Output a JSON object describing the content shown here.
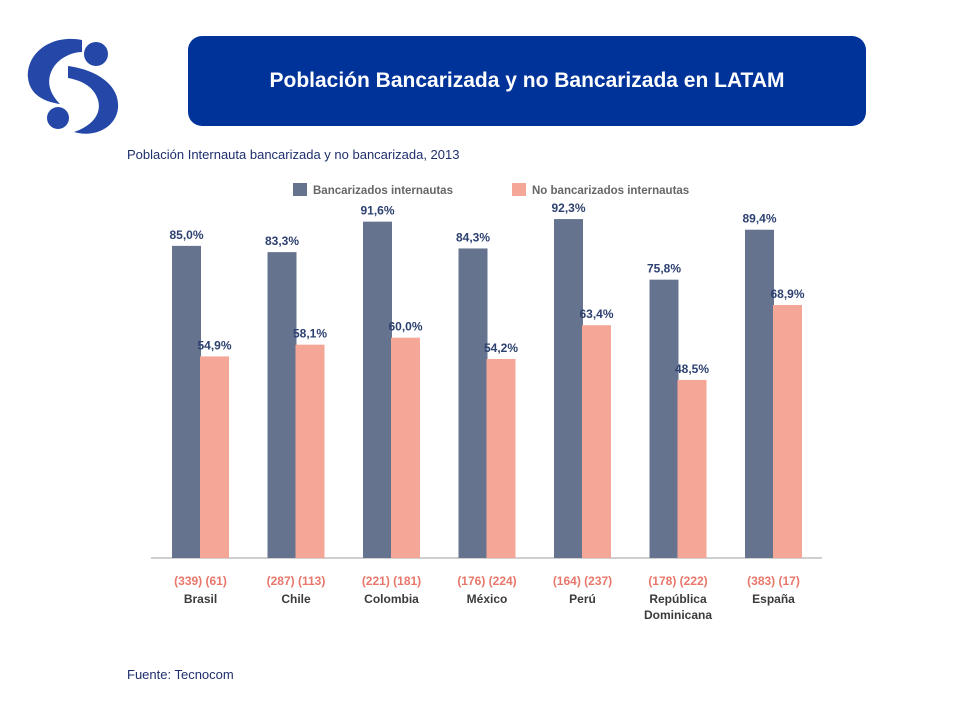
{
  "slide": {
    "title": "Población Bancarizada y no Bancarizada en LATAM",
    "subtitle": "Población Internauta bancarizada y no bancarizada, 2013",
    "source": "Fuente: Tecnocom",
    "logo_icon": "stylized-s-logo-icon",
    "brand_color": "#003399"
  },
  "chart_data": {
    "type": "bar",
    "title": "",
    "xlabel": "",
    "ylabel": "",
    "ylim": [
      0,
      100
    ],
    "grid": false,
    "legend_position": "top",
    "categories": [
      "Brasil",
      "Chile",
      "Colombia",
      "México",
      "Perú",
      "República Dominicana",
      "España"
    ],
    "category_lines": [
      [
        "Brasil"
      ],
      [
        "Chile"
      ],
      [
        "Colombia"
      ],
      [
        "México"
      ],
      [
        "Perú"
      ],
      [
        "República",
        "Dominicana"
      ],
      [
        "España"
      ]
    ],
    "sample_sizes": [
      "(339) (61)",
      "(287) (113)",
      "(221) (181)",
      "(176) (224)",
      "(164) (237)",
      "(178) (222)",
      "(383) (17)"
    ],
    "series": [
      {
        "name": "Bancarizados internautas",
        "color": "#66738f",
        "values": [
          85.0,
          83.3,
          91.6,
          84.3,
          92.3,
          75.8,
          89.4
        ],
        "labels": [
          "85,0%",
          "83,3%",
          "91,6%",
          "84,3%",
          "92,3%",
          "75,8%",
          "89,4%"
        ]
      },
      {
        "name": "No bancarizados internautas",
        "color": "#f5a797",
        "values": [
          54.9,
          58.1,
          60.0,
          54.2,
          63.4,
          48.5,
          68.9
        ],
        "labels": [
          "54,9%",
          "58,1%",
          "60,0%",
          "54,2%",
          "63,4%",
          "48,5%",
          "68,9%"
        ]
      }
    ],
    "label_color": "#2d4170",
    "sample_color": "#e8776a"
  }
}
